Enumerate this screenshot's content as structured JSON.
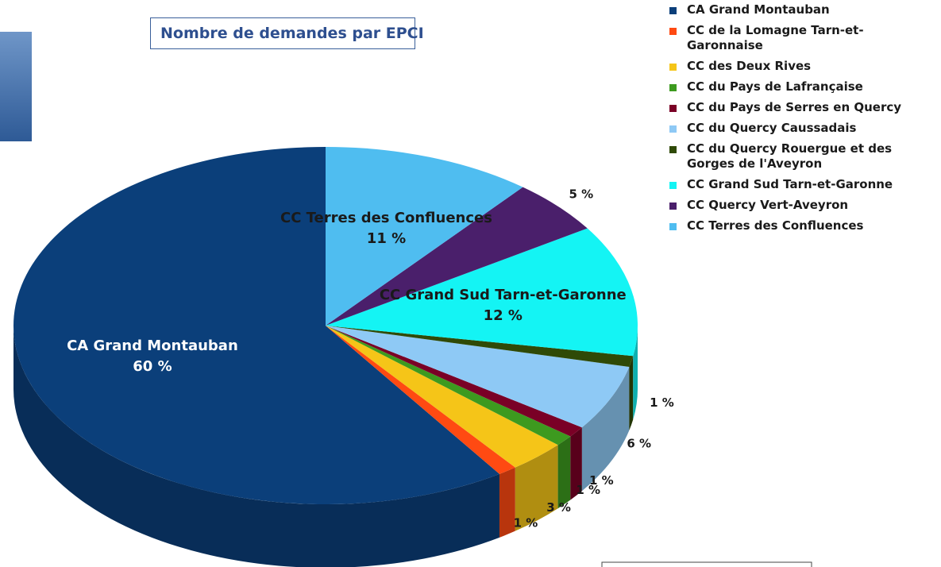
{
  "chart_data": {
    "type": "pie3d",
    "title": "Nombre de demandes par EPCI",
    "categories": [
      "CA Grand Montauban",
      "CC de la Lomagne Tarn-et-Garonnaise",
      "CC des Deux Rives",
      "CC du Pays de Lafrançaise",
      "CC du Pays de Serres en Quercy",
      "CC du Quercy Caussadais",
      "CC du Quercy Rouergue et des Gorges de l'Aveyron",
      "CC Grand Sud Tarn-et-Garonne",
      "CC Quercy Vert-Aveyron",
      "CC Terres des Confluences"
    ],
    "values": [
      60,
      1,
      3,
      1,
      1,
      6,
      1,
      12,
      5,
      11
    ],
    "value_labels": [
      "60 %",
      "1 %",
      "3 %",
      "1 %",
      "1 %",
      "6 %",
      "1 %",
      "12 %",
      "5 %",
      "11 %"
    ],
    "colors": [
      "#0b3f7a",
      "#ff4a12",
      "#f5c518",
      "#3d9a1f",
      "#7a0026",
      "#8ec9f5",
      "#2f4a07",
      "#14f4f4",
      "#4a1f6b",
      "#4fbdf0"
    ],
    "legend": "right"
  }
}
